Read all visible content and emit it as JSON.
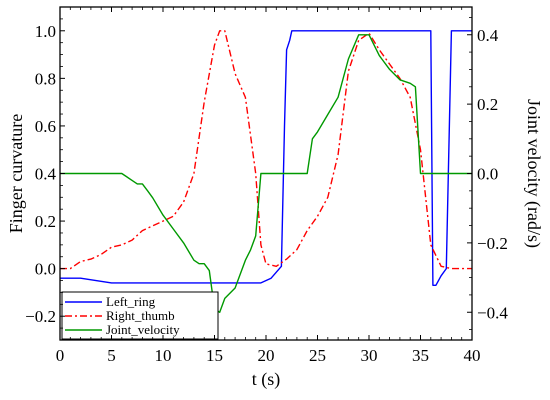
{
  "chart_data": {
    "type": "line",
    "xlabel": "t (s)",
    "ylabel": "Finger curvature",
    "y2label": "Joint velocity (rad/s)",
    "xlim": [
      0,
      40
    ],
    "ylim": [
      -0.3,
      1.1
    ],
    "y2lim": [
      -0.48,
      0.48
    ],
    "xticks": [
      0,
      5,
      10,
      15,
      20,
      25,
      30,
      35,
      40
    ],
    "xtick_labels": [
      "0",
      "5",
      "10",
      "15",
      "20",
      "25",
      "30",
      "35",
      "40"
    ],
    "yticks": [
      -0.2,
      0.0,
      0.2,
      0.4,
      0.6,
      0.8,
      1.0
    ],
    "ytick_labels": [
      "−0.2",
      "0.0",
      "0.2",
      "0.4",
      "0.6",
      "0.8",
      "1.0"
    ],
    "y2ticks": [
      -0.4,
      -0.2,
      0.0,
      0.2,
      0.4
    ],
    "y2tick_labels": [
      "−0.4",
      "−0.2",
      "0.0",
      "0.2",
      "0.4"
    ],
    "grid": false,
    "legend_position": "bottom-left",
    "series": [
      {
        "name": "Left_ring",
        "axis": "left",
        "color": "#0000ff",
        "style": "solid",
        "x": [
          0,
          2,
          5,
          10,
          15,
          19.5,
          20.5,
          21.5,
          21.8,
          22,
          22.3,
          22.5,
          25,
          30,
          35,
          36,
          36.2,
          36.5,
          37,
          37.5,
          38,
          40
        ],
        "y": [
          -0.04,
          -0.04,
          -0.06,
          -0.06,
          -0.06,
          -0.06,
          -0.04,
          0.01,
          0.6,
          0.92,
          0.96,
          1.0,
          1.0,
          1.0,
          1.0,
          1.0,
          -0.07,
          -0.07,
          -0.03,
          0.0,
          1.0,
          1.0
        ]
      },
      {
        "name": "Right_thumb",
        "axis": "left",
        "color": "#ff0000",
        "style": "dashdot",
        "x": [
          0,
          1,
          2,
          3,
          4,
          5,
          6,
          7,
          8,
          9,
          10,
          11,
          12,
          13,
          14,
          15,
          15.5,
          16,
          17,
          18,
          19,
          19.5,
          20,
          21,
          22,
          23,
          24,
          25,
          26,
          27,
          28,
          29,
          30,
          31,
          32,
          33,
          34,
          35,
          36,
          37,
          38,
          39,
          40
        ],
        "y": [
          0.0,
          0.0,
          0.03,
          0.04,
          0.06,
          0.09,
          0.1,
          0.12,
          0.16,
          0.18,
          0.2,
          0.22,
          0.28,
          0.4,
          0.7,
          0.94,
          1.0,
          1.0,
          0.82,
          0.72,
          0.4,
          0.1,
          0.02,
          0.01,
          0.04,
          0.08,
          0.16,
          0.22,
          0.3,
          0.48,
          0.83,
          0.96,
          0.99,
          0.92,
          0.86,
          0.8,
          0.72,
          0.5,
          0.1,
          0.01,
          0.0,
          0.0,
          0.0
        ]
      },
      {
        "name": "Joint_velocity",
        "axis": "right",
        "color": "#009900",
        "style": "solid",
        "x": [
          0,
          3,
          6,
          7,
          7.5,
          8,
          8.5,
          9,
          10,
          11,
          12,
          13,
          13.5,
          14,
          14.5,
          15,
          15.5,
          16,
          17,
          18,
          18.5,
          19,
          19.5,
          21,
          22,
          23,
          24,
          24.5,
          25,
          26,
          27,
          28,
          29,
          30,
          31,
          32,
          33,
          34,
          34.5,
          35,
          38,
          40
        ],
        "y": [
          0.0,
          0.0,
          0.0,
          -0.02,
          -0.03,
          -0.03,
          -0.05,
          -0.07,
          -0.12,
          -0.16,
          -0.2,
          -0.25,
          -0.26,
          -0.26,
          -0.28,
          -0.39,
          -0.4,
          -0.36,
          -0.33,
          -0.25,
          -0.22,
          -0.18,
          0.0,
          0.0,
          0.0,
          0.0,
          0.0,
          0.1,
          0.12,
          0.17,
          0.22,
          0.33,
          0.4,
          0.4,
          0.34,
          0.3,
          0.27,
          0.26,
          0.25,
          0.0,
          0.0,
          0.0
        ]
      }
    ]
  }
}
